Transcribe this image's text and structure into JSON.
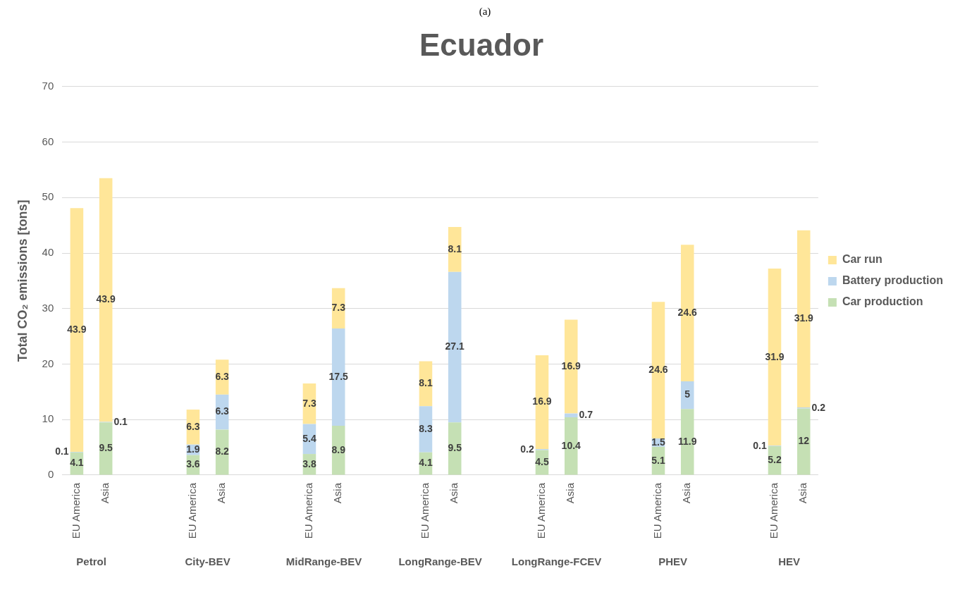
{
  "chart_data": {
    "type": "bar",
    "title": "Ecuador",
    "ylabel": "Total CO₂ emissions [tons]",
    "annotations": [
      "(a)",
      "Petrol",
      "City-BEV",
      "MidRange-BEV",
      "LongRange-BEV",
      "LongRange-FCEV",
      "PHEV",
      "HEV"
    ],
    "categories": [
      "EU America",
      "Asia",
      null,
      null,
      "EU America",
      "Asia",
      null,
      null,
      "EU America",
      "Asia",
      null,
      null,
      "EU America",
      "Asia",
      null,
      null,
      "EU America",
      "Asia",
      null,
      null,
      "EU America",
      "Asia",
      null,
      null,
      "EU America",
      "Asia"
    ],
    "series": [
      {
        "name": "Car production",
        "color": "#c5e0b4",
        "values": [
          4.1,
          9.5,
          null,
          null,
          3.6,
          8.2,
          null,
          null,
          3.8,
          8.9,
          null,
          null,
          4.1,
          9.5,
          null,
          null,
          4.5,
          10.4,
          null,
          null,
          5.1,
          11.9,
          null,
          null,
          5.2,
          12
        ]
      },
      {
        "name": "Battery production",
        "color": "#bdd7ee",
        "values": [
          0.1,
          0.1,
          null,
          null,
          1.9,
          6.3,
          null,
          null,
          5.4,
          17.5,
          null,
          null,
          8.3,
          27.1,
          null,
          null,
          0.2,
          0.7,
          null,
          null,
          1.5,
          5,
          null,
          null,
          0.1,
          0.2
        ]
      },
      {
        "name": "Car run",
        "color": "#ffe699",
        "values": [
          43.9,
          43.9,
          null,
          null,
          6.3,
          6.3,
          null,
          null,
          7.3,
          7.3,
          null,
          null,
          8.1,
          8.1,
          null,
          null,
          16.9,
          16.9,
          null,
          null,
          24.6,
          24.6,
          null,
          null,
          31.9,
          31.9
        ]
      }
    ],
    "stacked": true,
    "data_labels": true,
    "ylim": [
      0,
      70
    ],
    "yticks": [
      0,
      10,
      20,
      30,
      40,
      50,
      60,
      70
    ],
    "grid": "y",
    "legend": "right"
  }
}
